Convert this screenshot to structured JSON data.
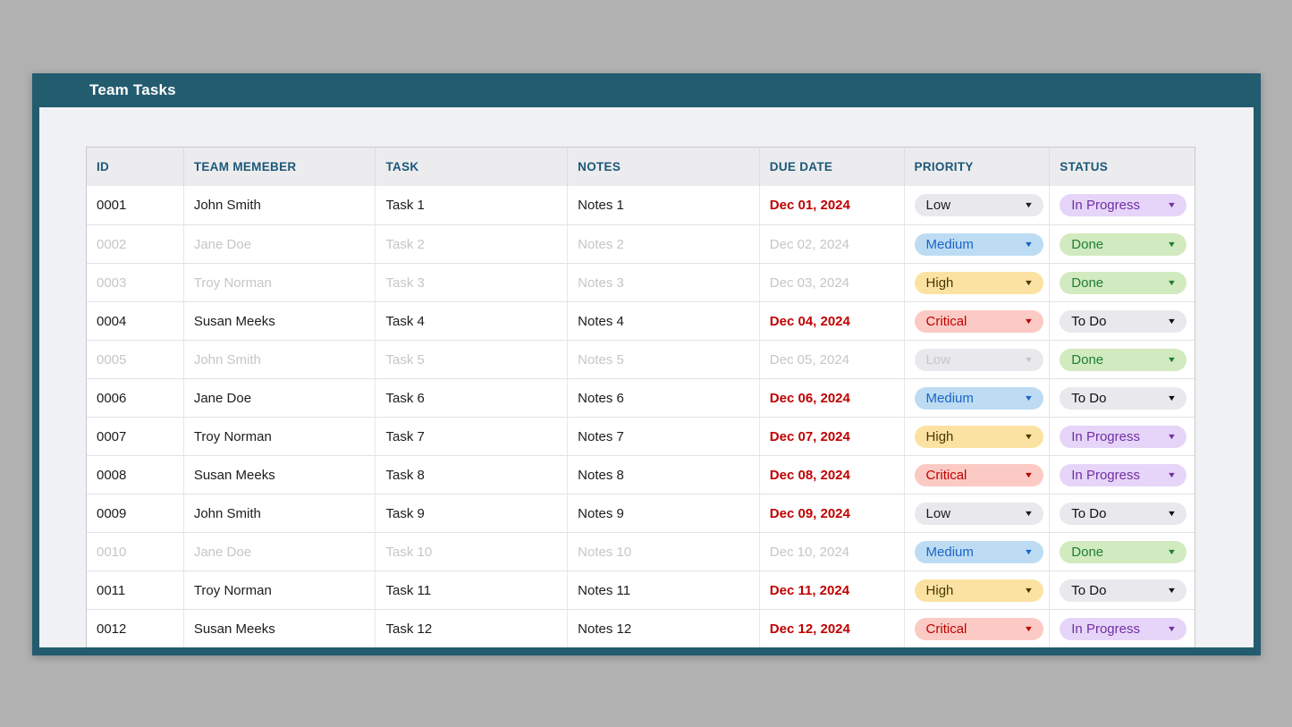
{
  "panel": {
    "title": "Team Tasks"
  },
  "table": {
    "columns": [
      {
        "key": "id",
        "label": "ID"
      },
      {
        "key": "member",
        "label": "TEAM MEMEBER"
      },
      {
        "key": "task",
        "label": "TASK"
      },
      {
        "key": "notes",
        "label": "NOTES"
      },
      {
        "key": "due",
        "label": "DUE DATE"
      },
      {
        "key": "priority",
        "label": "PRIORITY"
      },
      {
        "key": "status",
        "label": "STATUS"
      }
    ],
    "rows": [
      {
        "id": "0001",
        "member": "John Smith",
        "task": "Task 1",
        "notes": "Notes 1",
        "due": "Dec 01, 2024",
        "due_state": "overdue",
        "priority": "Low",
        "status": "In Progress",
        "dimmed": false
      },
      {
        "id": "0002",
        "member": "Jane Doe",
        "task": "Task 2",
        "notes": "Notes 2",
        "due": "Dec 02, 2024",
        "due_state": "normal",
        "priority": "Medium",
        "status": "Done",
        "dimmed": true
      },
      {
        "id": "0003",
        "member": "Troy Norman",
        "task": "Task 3",
        "notes": "Notes 3",
        "due": "Dec 03, 2024",
        "due_state": "normal",
        "priority": "High",
        "status": "Done",
        "dimmed": true
      },
      {
        "id": "0004",
        "member": "Susan Meeks",
        "task": "Task 4",
        "notes": "Notes 4",
        "due": "Dec 04, 2024",
        "due_state": "overdue",
        "priority": "Critical",
        "status": "To Do",
        "dimmed": false
      },
      {
        "id": "0005",
        "member": "John Smith",
        "task": "Task 5",
        "notes": "Notes 5",
        "due": "Dec 05, 2024",
        "due_state": "normal",
        "priority": "Low",
        "status": "Done",
        "dimmed": true
      },
      {
        "id": "0006",
        "member": "Jane Doe",
        "task": "Task 6",
        "notes": "Notes 6",
        "due": "Dec 06, 2024",
        "due_state": "overdue",
        "priority": "Medium",
        "status": "To Do",
        "dimmed": false
      },
      {
        "id": "0007",
        "member": "Troy Norman",
        "task": "Task 7",
        "notes": "Notes 7",
        "due": "Dec 07, 2024",
        "due_state": "overdue",
        "priority": "High",
        "status": "In Progress",
        "dimmed": false
      },
      {
        "id": "0008",
        "member": "Susan Meeks",
        "task": "Task 8",
        "notes": "Notes 8",
        "due": "Dec 08, 2024",
        "due_state": "overdue",
        "priority": "Critical",
        "status": "In Progress",
        "dimmed": false
      },
      {
        "id": "0009",
        "member": "John Smith",
        "task": "Task 9",
        "notes": "Notes 9",
        "due": "Dec 09, 2024",
        "due_state": "overdue",
        "priority": "Low",
        "status": "To Do",
        "dimmed": false
      },
      {
        "id": "0010",
        "member": "Jane Doe",
        "task": "Task 10",
        "notes": "Notes 10",
        "due": "Dec 10, 2024",
        "due_state": "normal",
        "priority": "Medium",
        "status": "Done",
        "dimmed": true
      },
      {
        "id": "0011",
        "member": "Troy Norman",
        "task": "Task 11",
        "notes": "Notes 11",
        "due": "Dec 11, 2024",
        "due_state": "overdue",
        "priority": "High",
        "status": "To Do",
        "dimmed": false
      },
      {
        "id": "0012",
        "member": "Susan Meeks",
        "task": "Task 12",
        "notes": "Notes 12",
        "due": "Dec 12, 2024",
        "due_state": "overdue",
        "priority": "Critical",
        "status": "In Progress",
        "dimmed": false
      }
    ]
  },
  "icons": {
    "dropdown_arrow": "▼"
  },
  "colors": {
    "page_bg": "#b1b1b1",
    "frame": "#235b6f",
    "content_bg": "#f0f1f4",
    "header_text": "#1b5878",
    "overdue_date": "#c00000",
    "dimmed_text": "#c6c6c6",
    "priority_low_bg": "#e9e9ed",
    "priority_medium_bg": "#bddcf3",
    "priority_medium_text": "#1a64c8",
    "priority_high_bg": "#fce2a2",
    "priority_high_text": "#463800",
    "priority_critical_bg": "#fbcac4",
    "priority_critical_text": "#bf0000",
    "status_todo_bg": "#e9e9ed",
    "status_todo_text": "#111111",
    "status_inprogress_bg": "#e6d5f8",
    "status_inprogress_text": "#7030a0",
    "status_done_bg": "#d2eabf",
    "status_done_text": "#1e7e34"
  }
}
